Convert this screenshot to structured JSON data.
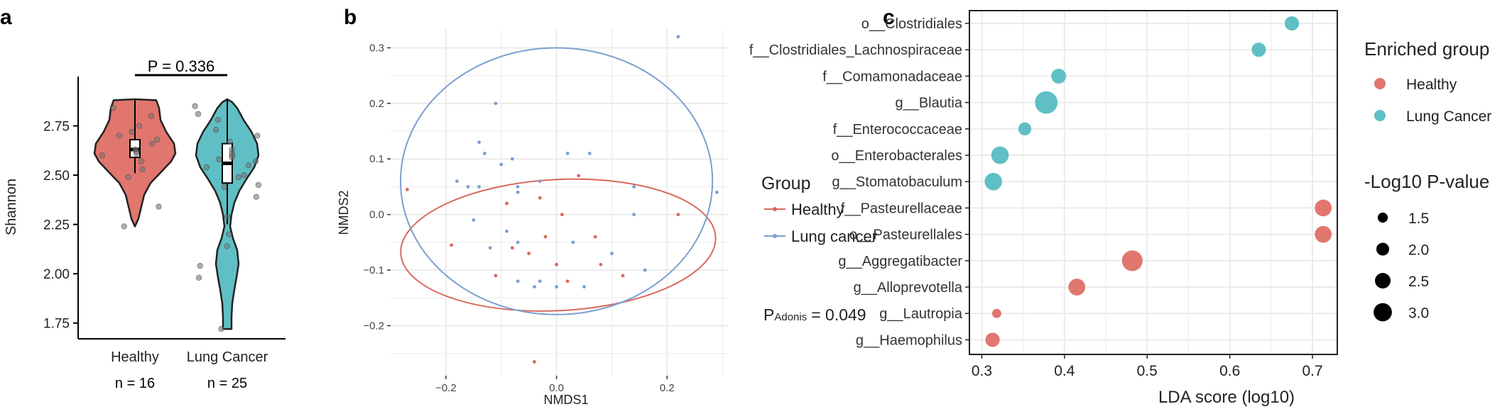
{
  "colors": {
    "healthy": "#E0766E",
    "cancer": "#5FBFC5",
    "nmds_healthy": "#D9685E",
    "nmds_cancer": "#7A9FD0",
    "grid": "#EBEBEB",
    "axis": "#000000",
    "text": "#222222",
    "point": "#7F7F7F"
  },
  "panels": [
    {
      "id": "a",
      "label": "a",
      "type": "violin",
      "ylabel": "Shannon",
      "ylim": [
        1.67,
        3.0
      ],
      "yticks": [
        1.75,
        2.0,
        2.25,
        2.5,
        2.75
      ],
      "ytick_labels": [
        "1.75",
        "2.00",
        "2.25",
        "2.50",
        "2.75"
      ],
      "p_label": "P = 0.336",
      "groups": [
        {
          "name": "Healthy",
          "n_label": "n = 16",
          "color_key": "healthy",
          "box": {
            "q1": 2.59,
            "median": 2.63,
            "q3": 2.68,
            "min": 2.51,
            "max": 2.88
          },
          "points": [
            2.84,
            2.8,
            2.75,
            2.72,
            2.7,
            2.68,
            2.66,
            2.63,
            2.62,
            2.61,
            2.6,
            2.57,
            2.53,
            2.49,
            2.34,
            2.24
          ]
        },
        {
          "name": "Lung Cancer",
          "n_label": "n = 25",
          "color_key": "cancer",
          "box": {
            "q1": 2.46,
            "median": 2.56,
            "q3": 2.66,
            "min": 2.25,
            "max": 2.88
          },
          "points": [
            2.85,
            2.81,
            2.78,
            2.73,
            2.7,
            2.67,
            2.63,
            2.61,
            2.6,
            2.59,
            2.58,
            2.57,
            2.55,
            2.54,
            2.5,
            2.49,
            2.45,
            2.44,
            2.39,
            2.29,
            2.2,
            2.14,
            2.04,
            1.98,
            1.72
          ]
        }
      ]
    },
    {
      "id": "b",
      "label": "b",
      "type": "scatter",
      "xlabel": "NMDS1",
      "ylabel": "NMDS2",
      "xlim": [
        -0.3,
        0.31
      ],
      "ylim": [
        -0.29,
        0.335
      ],
      "xticks": [
        -0.2,
        0.0,
        0.2
      ],
      "xtick_labels": [
        "−0.2",
        "0.0",
        "0.2"
      ],
      "yticks": [
        -0.2,
        -0.1,
        0.0,
        0.1,
        0.2,
        0.3
      ],
      "ytick_labels": [
        "−0.2",
        "−0.1",
        "0.0",
        "0.1",
        "0.2",
        "0.3"
      ],
      "legend_title": "Group",
      "p_prefix": "P",
      "p_sub": "Adonis",
      "p_value": "= 0.049",
      "series": [
        {
          "name": "Healthy",
          "color_key": "nmds_healthy",
          "ellipse": {
            "cx": 0.003,
            "cy": -0.055,
            "rx": 0.285,
            "ry": 0.118,
            "angle_deg": -3
          },
          "points": [
            [
              -0.27,
              0.045
            ],
            [
              -0.19,
              -0.055
            ],
            [
              -0.11,
              -0.11
            ],
            [
              -0.09,
              0.02
            ],
            [
              -0.08,
              -0.06
            ],
            [
              -0.05,
              -0.07
            ],
            [
              -0.03,
              0.03
            ],
            [
              -0.02,
              -0.04
            ],
            [
              0.0,
              -0.09
            ],
            [
              0.01,
              0.0
            ],
            [
              0.04,
              0.07
            ],
            [
              0.07,
              -0.04
            ],
            [
              0.08,
              -0.09
            ],
            [
              0.12,
              -0.11
            ],
            [
              -0.04,
              -0.265
            ],
            [
              0.22,
              0.0
            ],
            [
              0.02,
              -0.12
            ]
          ]
        },
        {
          "name": "Lung cancer",
          "color_key": "nmds_cancer",
          "ellipse": {
            "cx": 0.0,
            "cy": 0.06,
            "rx": 0.282,
            "ry": 0.24,
            "angle_deg": 0
          },
          "points": [
            [
              -0.11,
              0.2
            ],
            [
              -0.14,
              0.13
            ],
            [
              -0.13,
              0.11
            ],
            [
              -0.18,
              0.06
            ],
            [
              -0.16,
              0.05
            ],
            [
              -0.1,
              0.09
            ],
            [
              -0.08,
              0.1
            ],
            [
              -0.14,
              0.05
            ],
            [
              -0.07,
              0.05
            ],
            [
              -0.03,
              0.06
            ],
            [
              0.02,
              0.11
            ],
            [
              0.06,
              0.11
            ],
            [
              0.14,
              0.05
            ],
            [
              0.14,
              0.0
            ],
            [
              0.16,
              -0.1
            ],
            [
              0.29,
              0.04
            ],
            [
              -0.09,
              -0.03
            ],
            [
              -0.07,
              0.04
            ],
            [
              -0.07,
              -0.12
            ],
            [
              -0.15,
              -0.01
            ],
            [
              -0.04,
              -0.13
            ],
            [
              0.0,
              -0.13
            ],
            [
              0.05,
              -0.13
            ],
            [
              0.1,
              -0.07
            ],
            [
              0.22,
              0.32
            ],
            [
              -0.07,
              -0.05
            ],
            [
              0.03,
              -0.05
            ],
            [
              -0.12,
              -0.06
            ],
            [
              -0.03,
              -0.12
            ]
          ]
        }
      ]
    },
    {
      "id": "c",
      "label": "c",
      "type": "dot",
      "xlabel": "LDA score (log10)",
      "xlim": [
        0.285,
        0.73
      ],
      "xticks": [
        0.3,
        0.4,
        0.5,
        0.6,
        0.7
      ],
      "xtick_labels": [
        "0.3",
        "0.4",
        "0.5",
        "0.6",
        "0.7"
      ],
      "legend_color_title": "Enriched group",
      "legend_size_title": "-Log10 P-value",
      "legend_groups": [
        "Healthy",
        "Lung Cancer"
      ],
      "legend_sizes": [
        1.5,
        2.0,
        2.5,
        3.0
      ],
      "legend_size_labels": [
        "1.5",
        "2.0",
        "2.5",
        "3.0"
      ],
      "taxa": [
        {
          "name": "o__Clostridiales",
          "lda": 0.675,
          "neglog10p": 1.9,
          "group": "Lung Cancer"
        },
        {
          "name": "f__Clostridiales_Lachnospiraceae",
          "lda": 0.635,
          "neglog10p": 1.9,
          "group": "Lung Cancer"
        },
        {
          "name": "f__Comamonadaceae",
          "lda": 0.393,
          "neglog10p": 2.0,
          "group": "Lung Cancer"
        },
        {
          "name": "g__Blautia",
          "lda": 0.378,
          "neglog10p": 3.2,
          "group": "Lung Cancer"
        },
        {
          "name": "f__Enterococcaceae",
          "lda": 0.352,
          "neglog10p": 1.7,
          "group": "Lung Cancer"
        },
        {
          "name": "o__Enterobacterales",
          "lda": 0.322,
          "neglog10p": 2.4,
          "group": "Lung Cancer"
        },
        {
          "name": "g__Stomatobaculum",
          "lda": 0.314,
          "neglog10p": 2.4,
          "group": "Lung Cancer"
        },
        {
          "name": "f__Pasteurellaceae",
          "lda": 0.713,
          "neglog10p": 2.3,
          "group": "Healthy"
        },
        {
          "name": "o__Pasteurellales",
          "lda": 0.713,
          "neglog10p": 2.3,
          "group": "Healthy"
        },
        {
          "name": "g__Aggregatibacter",
          "lda": 0.482,
          "neglog10p": 2.9,
          "group": "Healthy"
        },
        {
          "name": "g__Alloprevotella",
          "lda": 0.415,
          "neglog10p": 2.3,
          "group": "Healthy"
        },
        {
          "name": "g__Lautropia",
          "lda": 0.318,
          "neglog10p": 1.1,
          "group": "Healthy"
        },
        {
          "name": "g__Haemophilus",
          "lda": 0.313,
          "neglog10p": 1.9,
          "group": "Healthy"
        }
      ]
    }
  ]
}
